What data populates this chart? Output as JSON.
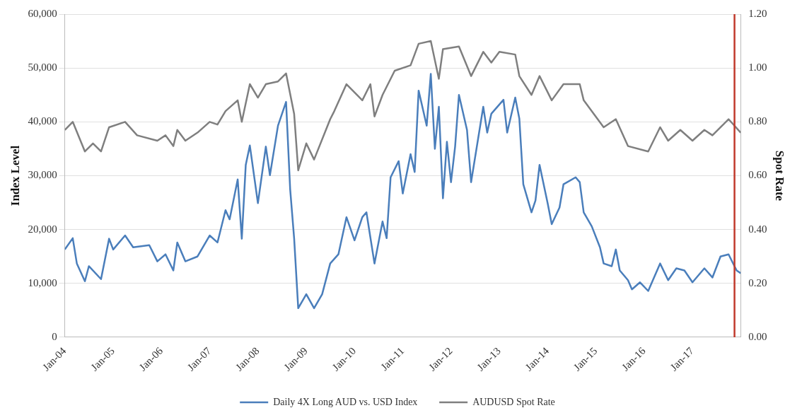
{
  "chart_data": {
    "type": "line",
    "ylabel": "Index Level",
    "y2label": "Spot Rate",
    "xlim": [
      "2004-01",
      "2018-01"
    ],
    "xticks": [
      {
        "value": "2004-01",
        "label": "Jan-04"
      },
      {
        "value": "2005-01",
        "label": "Jan-05"
      },
      {
        "value": "2006-01",
        "label": "Jan-06"
      },
      {
        "value": "2007-01",
        "label": "Jan-07"
      },
      {
        "value": "2008-01",
        "label": "Jan-08"
      },
      {
        "value": "2009-01",
        "label": "Jan-09"
      },
      {
        "value": "2010-01",
        "label": "Jan-10"
      },
      {
        "value": "2011-01",
        "label": "Jan-11"
      },
      {
        "value": "2012-01",
        "label": "Jan-12"
      },
      {
        "value": "2013-01",
        "label": "Jan-13"
      },
      {
        "value": "2014-01",
        "label": "Jan-14"
      },
      {
        "value": "2015-01",
        "label": "Jan-15"
      },
      {
        "value": "2016-01",
        "label": "Jan-16"
      },
      {
        "value": "2017-01",
        "label": "Jan-17"
      }
    ],
    "ylim": [
      0,
      60000
    ],
    "yticks": [
      0,
      {
        "value": 10000,
        "label": "10,000"
      },
      {
        "value": 20000,
        "label": "20,000"
      },
      {
        "value": 30000,
        "label": "30,000"
      },
      {
        "value": 40000,
        "label": "40,000"
      },
      {
        "value": 50000,
        "label": "50,000"
      },
      {
        "value": 60000,
        "label": "60,000"
      }
    ],
    "y2lim": [
      0,
      1.2
    ],
    "y2ticks": [
      {
        "value": 0,
        "label": "0.00"
      },
      {
        "value": 0.2,
        "label": "0.20"
      },
      {
        "value": 0.4,
        "label": "0.40"
      },
      {
        "value": 0.6,
        "label": "0.60"
      },
      {
        "value": 0.8,
        "label": "0.80"
      },
      {
        "value": 1,
        "label": "1.00"
      },
      {
        "value": 1.2,
        "label": "1.20"
      }
    ],
    "grid": "y",
    "legend": "bottom",
    "marker": "none",
    "line_style": "solid",
    "ref_lines": [
      {
        "axis": "x",
        "value": "2017-11-15",
        "color": "#c0392b"
      }
    ],
    "series": [
      {
        "name": "Daily 4X Long AUD vs. USD Index",
        "color": "#4a7ebb",
        "x": [
          "2004-01",
          "2004-03",
          "2004-04",
          "2004-06",
          "2004-07",
          "2004-10",
          "2004-12",
          "2005-01",
          "2005-04",
          "2005-06",
          "2005-10",
          "2005-12",
          "2006-02",
          "2006-04",
          "2006-05",
          "2006-07",
          "2006-10",
          "2007-01",
          "2007-03",
          "2007-05",
          "2007-06",
          "2007-08",
          "2007-09",
          "2007-10",
          "2007-11",
          "2008-01",
          "2008-03",
          "2008-04",
          "2008-06",
          "2008-08",
          "2008-09",
          "2008-10",
          "2008-11",
          "2009-01",
          "2009-03",
          "2009-05",
          "2009-07",
          "2009-09",
          "2009-11",
          "2010-01",
          "2010-03",
          "2010-04",
          "2010-06",
          "2010-08",
          "2010-09",
          "2010-10",
          "2010-12",
          "2011-01",
          "2011-03",
          "2011-04",
          "2011-05",
          "2011-07",
          "2011-08",
          "2011-09",
          "2011-10",
          "2011-11",
          "2011-12",
          "2012-01",
          "2012-02",
          "2012-03",
          "2012-05",
          "2012-06",
          "2012-09",
          "2012-10",
          "2012-11",
          "2013-02",
          "2013-03",
          "2013-05",
          "2013-06",
          "2013-07",
          "2013-09",
          "2013-10",
          "2013-11",
          "2014-01",
          "2014-02",
          "2014-04",
          "2014-05",
          "2014-08",
          "2014-09",
          "2014-10",
          "2014-12",
          "2015-02",
          "2015-03",
          "2015-05",
          "2015-06",
          "2015-07",
          "2015-09",
          "2015-10",
          "2015-12",
          "2016-02",
          "2016-05",
          "2016-07",
          "2016-09",
          "2016-11",
          "2017-01",
          "2017-04",
          "2017-06",
          "2017-08",
          "2017-10",
          "2017-12",
          "2018-01"
        ],
        "values": [
          16300,
          18400,
          13700,
          10400,
          13200,
          10800,
          18300,
          16300,
          18900,
          16700,
          17100,
          14100,
          15400,
          12400,
          17600,
          14100,
          15000,
          18900,
          17600,
          23600,
          21900,
          29300,
          18300,
          32000,
          35600,
          24900,
          35400,
          30100,
          39300,
          43700,
          27500,
          18400,
          5400,
          8000,
          5400,
          8000,
          13700,
          15400,
          22300,
          18000,
          22300,
          23200,
          13700,
          21500,
          18400,
          29700,
          32700,
          26700,
          34000,
          30700,
          45800,
          39300,
          48900,
          35000,
          42800,
          25800,
          36300,
          28800,
          35400,
          45000,
          38500,
          28800,
          42800,
          38000,
          41500,
          44100,
          38000,
          44500,
          40600,
          28400,
          23200,
          25400,
          32000,
          24900,
          21000,
          24100,
          28400,
          29700,
          28800,
          23200,
          20600,
          16700,
          13700,
          13200,
          16300,
          12400,
          10600,
          8900,
          10200,
          8600,
          13700,
          10600,
          12800,
          12400,
          10200,
          12800,
          11100,
          15000,
          15400,
          12400,
          11900
        ]
      },
      {
        "name": "AUDUSD Spot Rate",
        "color": "#7f7f7f",
        "axis": "y2",
        "x": [
          "2004-01",
          "2004-03",
          "2004-06",
          "2004-08",
          "2004-10",
          "2004-12",
          "2005-04",
          "2005-07",
          "2005-12",
          "2006-02",
          "2006-04",
          "2006-05",
          "2006-07",
          "2006-10",
          "2007-01",
          "2007-03",
          "2007-05",
          "2007-08",
          "2007-09",
          "2007-11",
          "2008-01",
          "2008-03",
          "2008-06",
          "2008-08",
          "2008-10",
          "2008-11",
          "2009-01",
          "2009-03",
          "2009-07",
          "2009-08",
          "2009-11",
          "2010-03",
          "2010-05",
          "2010-06",
          "2010-08",
          "2010-11",
          "2011-03",
          "2011-05",
          "2011-08",
          "2011-10",
          "2011-11",
          "2012-03",
          "2012-06",
          "2012-09",
          "2012-11",
          "2013-01",
          "2013-05",
          "2013-06",
          "2013-09",
          "2013-11",
          "2014-02",
          "2014-05",
          "2014-09",
          "2014-10",
          "2015-03",
          "2015-06",
          "2015-09",
          "2016-02",
          "2016-05",
          "2016-07",
          "2016-10",
          "2017-01",
          "2017-04",
          "2017-06",
          "2017-10",
          "2018-01"
        ],
        "values": [
          0.77,
          0.8,
          0.69,
          0.72,
          0.69,
          0.78,
          0.8,
          0.75,
          0.73,
          0.75,
          0.71,
          0.77,
          0.73,
          0.76,
          0.8,
          0.79,
          0.84,
          0.88,
          0.8,
          0.94,
          0.89,
          0.94,
          0.95,
          0.98,
          0.83,
          0.62,
          0.72,
          0.66,
          0.81,
          0.84,
          0.94,
          0.88,
          0.94,
          0.82,
          0.9,
          0.99,
          1.01,
          1.09,
          1.1,
          0.96,
          1.07,
          1.08,
          0.97,
          1.06,
          1.02,
          1.06,
          1.05,
          0.97,
          0.9,
          0.97,
          0.88,
          0.94,
          0.94,
          0.88,
          0.78,
          0.81,
          0.71,
          0.69,
          0.78,
          0.73,
          0.77,
          0.73,
          0.77,
          0.75,
          0.81,
          0.76
        ]
      }
    ]
  }
}
